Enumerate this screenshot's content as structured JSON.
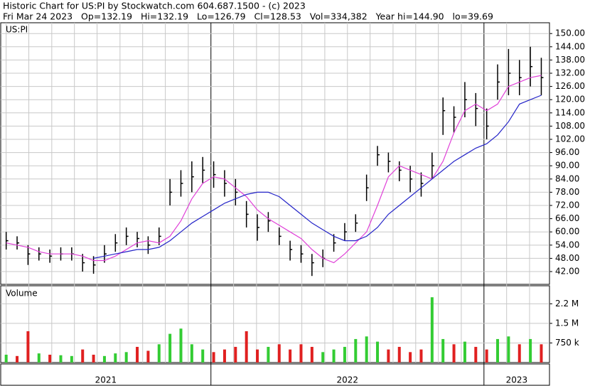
{
  "chart_data": {
    "type": "ohlc",
    "title": "Historic Chart for US:PI by Stockwatch.com 604.687.1500 - (c) 2023",
    "subtitle": "Fri Mar 24 2023   Op=132.19   Hi=132.19   Lo=126.79   Cl=128.53   Vol=334,382   Year hi=144.90   lo=39.69",
    "symbol": "US:PI",
    "volume_label": "Volume",
    "x": [
      2021.25,
      2021.29,
      2021.33,
      2021.37,
      2021.41,
      2021.45,
      2021.49,
      2021.53,
      2021.57,
      2021.61,
      2021.65,
      2021.69,
      2021.73,
      2021.77,
      2021.81,
      2021.85,
      2021.89,
      2021.93,
      2021.97,
      2022.01,
      2022.05,
      2022.09,
      2022.13,
      2022.17,
      2022.21,
      2022.25,
      2022.29,
      2022.33,
      2022.37,
      2022.41,
      2022.45,
      2022.49,
      2022.53,
      2022.57,
      2022.61,
      2022.65,
      2022.69,
      2022.73,
      2022.77,
      2022.81,
      2022.85,
      2022.89,
      2022.93,
      2022.97,
      2023.01,
      2023.05,
      2023.09,
      2023.13,
      2023.17,
      2023.21
    ],
    "high": [
      60,
      58,
      54,
      53,
      52,
      53,
      53,
      50,
      49,
      54,
      59,
      62,
      60,
      58,
      62,
      84,
      88,
      92,
      94,
      92,
      88,
      84,
      74,
      68,
      69,
      62,
      56,
      54,
      50,
      52,
      59,
      64,
      68,
      86,
      99,
      96,
      92,
      90,
      87,
      96,
      121,
      117,
      128,
      123,
      116,
      136,
      143,
      138,
      144,
      139
    ],
    "low": [
      52,
      52,
      45,
      47,
      46,
      47,
      47,
      42,
      41,
      46,
      51,
      54,
      53,
      50,
      54,
      72,
      76,
      78,
      82,
      80,
      76,
      72,
      62,
      56,
      60,
      54,
      47,
      46,
      40,
      44,
      51,
      56,
      60,
      74,
      90,
      87,
      83,
      78,
      76,
      84,
      104,
      105,
      112,
      108,
      102,
      120,
      122,
      122,
      126,
      122
    ],
    "close": [
      56,
      55,
      50,
      50,
      49,
      50,
      50,
      46,
      45,
      50,
      55,
      58,
      57,
      54,
      58,
      78,
      82,
      85,
      88,
      86,
      82,
      78,
      68,
      62,
      65,
      58,
      52,
      50,
      46,
      48,
      55,
      60,
      64,
      80,
      95,
      92,
      88,
      84,
      82,
      90,
      115,
      112,
      120,
      116,
      108,
      128,
      132,
      130,
      135,
      130
    ],
    "volume": [
      300000,
      250000,
      1200000,
      350000,
      300000,
      280000,
      250000,
      500000,
      300000,
      250000,
      350000,
      400000,
      600000,
      450000,
      700000,
      1100000,
      1300000,
      700000,
      500000,
      400000,
      500000,
      600000,
      1200000,
      500000,
      600000,
      700000,
      500000,
      700000,
      600000,
      400000,
      500000,
      600000,
      900000,
      1000000,
      800000,
      500000,
      600000,
      400000,
      500000,
      2500000,
      900000,
      700000,
      800000,
      600000,
      500000,
      900000,
      1000000,
      700000,
      900000,
      700000
    ],
    "bar_color": "#000000",
    "up_color": "#33cc33",
    "down_color": "#e02020",
    "moving_averages": [
      {
        "color": "#e040d8",
        "values": [
          55,
          54,
          53,
          51,
          50,
          50,
          50,
          49,
          47,
          47,
          49,
          52,
          55,
          56,
          55,
          58,
          65,
          75,
          82,
          85,
          84,
          80,
          76,
          70,
          66,
          63,
          60,
          57,
          52,
          48,
          46,
          50,
          55,
          60,
          72,
          85,
          90,
          88,
          86,
          84,
          92,
          105,
          115,
          118,
          115,
          118,
          126,
          128,
          130,
          131
        ]
      },
      {
        "color": "#2424c8",
        "values": [
          null,
          null,
          null,
          null,
          null,
          null,
          null,
          null,
          48,
          49,
          50,
          51,
          52,
          52,
          53,
          56,
          60,
          64,
          67,
          70,
          73,
          75,
          77,
          78,
          78,
          76,
          72,
          68,
          64,
          61,
          58,
          56,
          56,
          58,
          62,
          68,
          72,
          76,
          80,
          84,
          88,
          92,
          95,
          98,
          100,
          104,
          110,
          118,
          120,
          122
        ]
      }
    ],
    "xlim": [
      2021.23,
      2023.24
    ],
    "ylim": [
      36.2,
      154.9
    ],
    "yticks": [
      {
        "value": 42,
        "label": "42.00"
      },
      {
        "value": 48,
        "label": "48.00"
      },
      {
        "value": 54,
        "label": "54.00"
      },
      {
        "value": 60,
        "label": "60.00"
      },
      {
        "value": 66,
        "label": "66.00"
      },
      {
        "value": 72,
        "label": "72.00"
      },
      {
        "value": 78,
        "label": "78.00"
      },
      {
        "value": 84,
        "label": "84.00"
      },
      {
        "value": 90,
        "label": "90.00"
      },
      {
        "value": 96,
        "label": "96.00"
      },
      {
        "value": 102,
        "label": "102.00"
      },
      {
        "value": 108,
        "label": "108.00"
      },
      {
        "value": 114,
        "label": "114.00"
      },
      {
        "value": 120,
        "label": "120.00"
      },
      {
        "value": 126,
        "label": "126.00"
      },
      {
        "value": 132,
        "label": "132.00"
      },
      {
        "value": 138,
        "label": "138.00"
      },
      {
        "value": 144,
        "label": "144.00"
      },
      {
        "value": 150,
        "label": "150.00"
      }
    ],
    "volume_lim": [
      0,
      2940000
    ],
    "volume_ticks": [
      {
        "value": 750000,
        "label": "750 k"
      },
      {
        "value": 1500000,
        "label": "1.5 M"
      },
      {
        "value": 2250000,
        "label": "2.2 M"
      }
    ],
    "xgrid": [
      2021.25,
      2021.333,
      2021.417,
      2021.5,
      2021.583,
      2021.667,
      2021.75,
      2021.833,
      2021.917,
      2022.083,
      2022.167,
      2022.25,
      2022.333,
      2022.417,
      2022.5,
      2022.583,
      2022.667,
      2022.75,
      2022.833,
      2022.917,
      2023.083,
      2023.167
    ],
    "xticks": [
      2022,
      2023
    ],
    "period_labels": [
      {
        "value": 2021,
        "label": "2021"
      },
      {
        "value": 2022,
        "label": "2022"
      },
      {
        "value": 2023,
        "label": "2023"
      }
    ],
    "grid": true
  }
}
